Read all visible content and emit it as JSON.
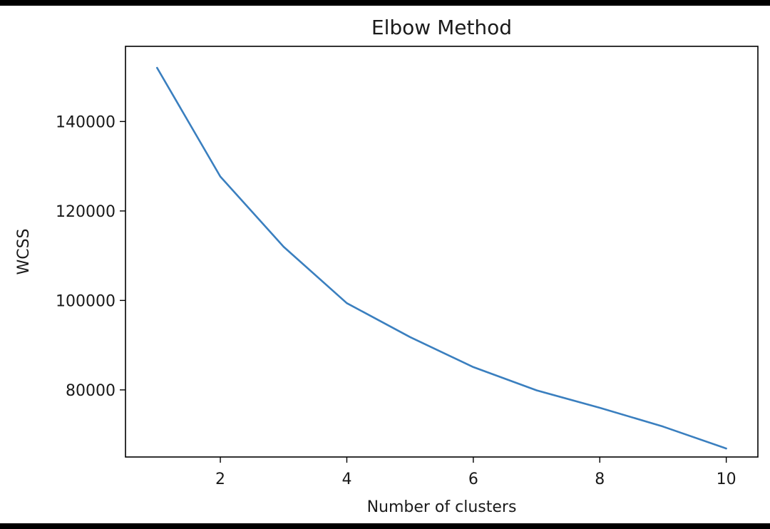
{
  "chart_data": {
    "type": "line",
    "title": "Elbow Method",
    "xlabel": "Number of clusters",
    "ylabel": "WCSS",
    "x": [
      1,
      2,
      3,
      4,
      5,
      6,
      7,
      8,
      9,
      10
    ],
    "series": [
      {
        "values": [
          152000,
          127700,
          112000,
          99400,
          91800,
          85100,
          79900,
          76000,
          71800,
          66900
        ]
      }
    ],
    "xlim": [
      0.5,
      10.5
    ],
    "ylim": [
      65000,
      156800
    ],
    "xticks": [
      2,
      4,
      6,
      8,
      10
    ],
    "xtick_labels": [
      "2",
      "4",
      "6",
      "8",
      "10"
    ],
    "yticks": [
      80000,
      100000,
      120000,
      140000
    ],
    "ytick_labels": [
      "80000",
      "100000",
      "120000",
      "140000"
    ],
    "grid": false,
    "line_color": "#3a7fbf"
  }
}
